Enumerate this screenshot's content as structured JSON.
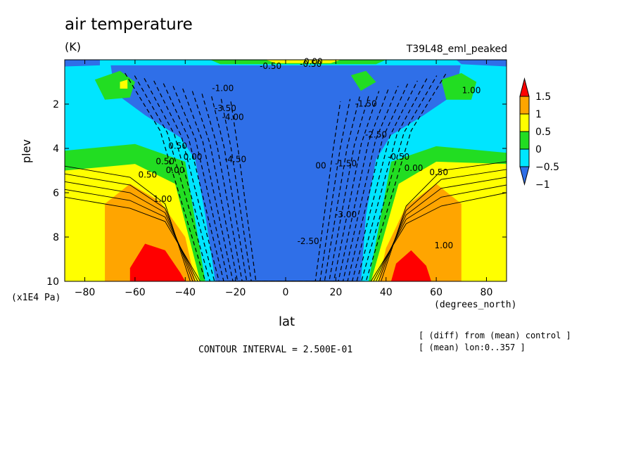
{
  "header": {
    "title": "air temperature",
    "units": "(K)",
    "run_name": "T39L48_eml_peaked"
  },
  "footer": {
    "contour_interval": "CONTOUR INTERVAL = 2.500E-01",
    "note_line_1": "[ (diff) from (mean) control ]",
    "note_line_2": "[ (mean) lon:0..357 ]"
  },
  "chart_data": {
    "type": "heatmap",
    "title": "air temperature",
    "units_label": "(K)",
    "xlabel": "lat",
    "x_units": "(degrees_north)",
    "ylabel": "plev",
    "y_units": "(x1E4 Pa)",
    "xlim": [
      -88,
      88
    ],
    "ylim": [
      0,
      10
    ],
    "y_inverted": true,
    "x_ticks": [
      -80,
      -60,
      -40,
      -20,
      0,
      20,
      40,
      60,
      80
    ],
    "y_ticks": [
      2,
      4,
      6,
      8,
      10
    ],
    "colorbar": {
      "levels": [
        -1,
        -0.5,
        0,
        0.5,
        1,
        1.5
      ],
      "tick_labels": [
        "1.5",
        "1",
        "0.5",
        "0",
        "−0.5",
        "−1"
      ],
      "colors": [
        "#2f6fe8",
        "#00e5ff",
        "#22dd22",
        "#ffff00",
        "#ffa500",
        "#ff0000"
      ],
      "extend": "both"
    },
    "contour_labels": [
      {
        "text": "1.00",
        "lat": -49,
        "plev": 6.3
      },
      {
        "text": "0.50",
        "lat": -55,
        "plev": 5.2
      },
      {
        "text": "0.50",
        "lat": -48,
        "plev": 4.6
      },
      {
        "text": "0.00",
        "lat": -44,
        "plev": 5.0
      },
      {
        "text": "0.50",
        "lat": -43,
        "plev": 3.9
      },
      {
        "text": "0.00",
        "lat": -37,
        "plev": 4.4
      },
      {
        "text": "-1.00",
        "lat": -25,
        "plev": 1.3
      },
      {
        "text": "-3.50",
        "lat": -24,
        "plev": 2.2
      },
      {
        "text": "-4.00",
        "lat": -21,
        "plev": 2.6
      },
      {
        "text": "-4.50",
        "lat": -20,
        "plev": 4.5
      },
      {
        "text": "-0.50",
        "lat": -6,
        "plev": 0.3
      },
      {
        "text": "-0.50",
        "lat": 10,
        "plev": 0.2
      },
      {
        "text": "0.00",
        "lat": 11,
        "plev": 0.1
      },
      {
        "text": "-2.50",
        "lat": 9,
        "plev": 8.2
      },
      {
        "text": "00",
        "lat": 14,
        "plev": 4.8
      },
      {
        "text": "-1.50",
        "lat": 32,
        "plev": 2.0
      },
      {
        "text": "-1.50",
        "lat": 24,
        "plev": 4.7
      },
      {
        "text": "-2.50",
        "lat": 36,
        "plev": 3.4
      },
      {
        "text": "-3.00",
        "lat": 24,
        "plev": 7.0
      },
      {
        "text": "-0.50",
        "lat": 45,
        "plev": 4.4
      },
      {
        "text": "0.00",
        "lat": 51,
        "plev": 4.9
      },
      {
        "text": "0.50",
        "lat": 61,
        "plev": 5.1
      },
      {
        "text": "1.00",
        "lat": 63,
        "plev": 8.4
      },
      {
        "text": "1.00",
        "lat": 74,
        "plev": 1.4
      }
    ]
  }
}
